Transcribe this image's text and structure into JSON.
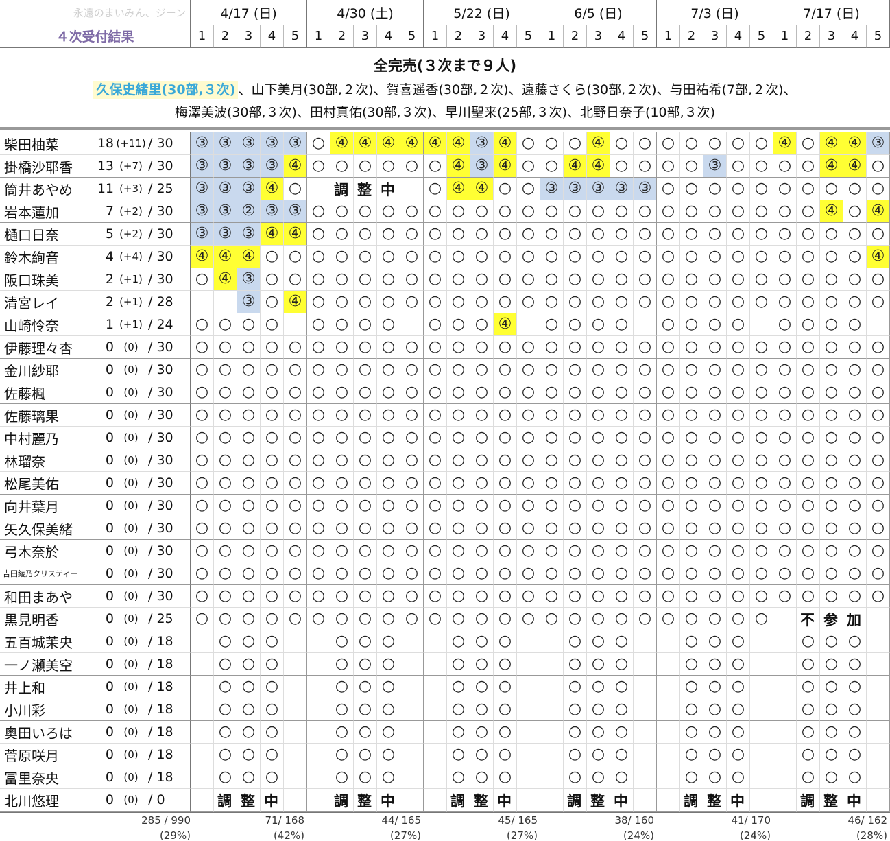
{
  "watermark": "永遠のまいみん、ジーン",
  "label": "４次受付結果",
  "dates": [
    "4/17 (日)",
    "4/30 (土)",
    "5/22 (日)",
    "6/5 (日)",
    "7/3 (日)",
    "7/17 (日)"
  ],
  "slots": [
    "1",
    "2",
    "3",
    "4",
    "5"
  ],
  "soldout": {
    "title": "全完売(３次まで９人)",
    "highlight": "久保史緒里(30部,３次)",
    "line1_rest": "、山下美月(30部,２次)、賀喜遥香(30部,２次)、遠藤さくら(30部,２次)、与田祐希(7部,２次)、",
    "line2": "梅澤美波(30部,３次)、田村真佑(30部,３次)、早川聖来(25部,３次)、北野日奈子(10部,３次)"
  },
  "overlay_adjusting": [
    "調",
    "整",
    "中"
  ],
  "overlay_absent": [
    "不",
    "参",
    "加"
  ],
  "members": [
    {
      "name": "柴田柚菜",
      "sold": "18",
      "diff": "(+11)",
      "total": "/ 30",
      "cells": [
        "3",
        "3",
        "3",
        "3",
        "3",
        "o",
        "4",
        "4",
        "4",
        "4",
        "4",
        "4",
        "3",
        "4",
        "o",
        "o",
        "o",
        "4",
        "o",
        "o",
        "o",
        "o",
        "o",
        "o",
        "o",
        "4",
        "o",
        "4",
        "4",
        "3"
      ]
    },
    {
      "name": "掛橋沙耶香",
      "sold": "13",
      "diff": "(+7)",
      "total": "/ 30",
      "cells": [
        "3",
        "3",
        "3",
        "3",
        "4",
        "o",
        "o",
        "o",
        "o",
        "o",
        "o",
        "4",
        "3",
        "4",
        "o",
        "o",
        "4",
        "4",
        "o",
        "o",
        "o",
        "o",
        "3",
        "o",
        "o",
        "o",
        "o",
        "4",
        "4",
        "o"
      ]
    },
    {
      "name": "筒井あやめ",
      "sold": "11",
      "diff": "(+3)",
      "total": "/ 25",
      "cells": [
        "3",
        "3",
        "3",
        "4",
        "o",
        "",
        "",
        "",
        "",
        "",
        "o",
        "4",
        "4",
        "o",
        "o",
        "3",
        "3",
        "3",
        "3",
        "3",
        "o",
        "o",
        "o",
        "o",
        "o",
        "o",
        "o",
        "o",
        "o",
        "o"
      ],
      "overlay": "adj1"
    },
    {
      "name": "岩本蓮加",
      "sold": "7",
      "diff": "(+2)",
      "total": "/ 30",
      "cells": [
        "3",
        "3",
        "2",
        "3",
        "3",
        "o",
        "o",
        "o",
        "o",
        "o",
        "o",
        "o",
        "o",
        "o",
        "o",
        "o",
        "o",
        "o",
        "o",
        "o",
        "o",
        "o",
        "o",
        "o",
        "o",
        "o",
        "o",
        "4",
        "o",
        "4"
      ]
    },
    {
      "name": "樋口日奈",
      "sold": "5",
      "diff": "(+2)",
      "total": "/ 30",
      "cells": [
        "3",
        "3",
        "3",
        "4",
        "4",
        "o",
        "o",
        "o",
        "o",
        "o",
        "o",
        "o",
        "o",
        "o",
        "o",
        "o",
        "o",
        "o",
        "o",
        "o",
        "o",
        "o",
        "o",
        "o",
        "o",
        "o",
        "o",
        "o",
        "o",
        "o"
      ]
    },
    {
      "name": "鈴木絢音",
      "sold": "4",
      "diff": "(+4)",
      "total": "/ 30",
      "cells": [
        "4",
        "4",
        "4",
        "o",
        "o",
        "o",
        "o",
        "o",
        "o",
        "o",
        "o",
        "o",
        "o",
        "o",
        "o",
        "o",
        "o",
        "o",
        "o",
        "o",
        "o",
        "o",
        "o",
        "o",
        "o",
        "o",
        "o",
        "o",
        "o",
        "4"
      ]
    },
    {
      "name": "阪口珠美",
      "sold": "2",
      "diff": "(+1)",
      "total": "/ 30",
      "cells": [
        "o",
        "4",
        "3",
        "o",
        "o",
        "o",
        "o",
        "o",
        "o",
        "o",
        "o",
        "o",
        "o",
        "o",
        "o",
        "o",
        "o",
        "o",
        "o",
        "o",
        "o",
        "o",
        "o",
        "o",
        "o",
        "o",
        "o",
        "o",
        "o",
        "o"
      ]
    },
    {
      "name": "清宮レイ",
      "sold": "2",
      "diff": "(+1)",
      "total": "/ 28",
      "cells": [
        "",
        "",
        "3",
        "o",
        "4",
        "o",
        "o",
        "o",
        "o",
        "o",
        "o",
        "o",
        "o",
        "o",
        "o",
        "o",
        "o",
        "o",
        "o",
        "o",
        "o",
        "o",
        "o",
        "o",
        "o",
        "o",
        "o",
        "o",
        "o",
        "o"
      ]
    },
    {
      "name": "山崎怜奈",
      "sold": "1",
      "diff": "(+1)",
      "total": "/ 24",
      "cells": [
        "o",
        "o",
        "o",
        "o",
        "",
        "o",
        "o",
        "o",
        "o",
        "",
        "o",
        "o",
        "o",
        "4",
        "",
        "o",
        "o",
        "o",
        "o",
        "",
        "o",
        "o",
        "o",
        "o",
        "",
        "o",
        "o",
        "o",
        "o",
        ""
      ]
    },
    {
      "name": "伊藤理々杏",
      "sold": "0",
      "diff": "(0)",
      "total": "/ 30",
      "cells": "all"
    },
    {
      "name": "金川紗耶",
      "sold": "0",
      "diff": "(0)",
      "total": "/ 30",
      "cells": "all"
    },
    {
      "name": "佐藤楓",
      "sold": "0",
      "diff": "(0)",
      "total": "/ 30",
      "cells": "all"
    },
    {
      "name": "佐藤璃果",
      "sold": "0",
      "diff": "(0)",
      "total": "/ 30",
      "cells": "all"
    },
    {
      "name": "中村麗乃",
      "sold": "0",
      "diff": "(0)",
      "total": "/ 30",
      "cells": "all"
    },
    {
      "name": "林瑠奈",
      "sold": "0",
      "diff": "(0)",
      "total": "/ 30",
      "cells": "all"
    },
    {
      "name": "松尾美佑",
      "sold": "0",
      "diff": "(0)",
      "total": "/ 30",
      "cells": "all"
    },
    {
      "name": "向井葉月",
      "sold": "0",
      "diff": "(0)",
      "total": "/ 30",
      "cells": "all"
    },
    {
      "name": "矢久保美緒",
      "sold": "0",
      "diff": "(0)",
      "total": "/ 30",
      "cells": "all"
    },
    {
      "name": "弓木奈於",
      "sold": "0",
      "diff": "(0)",
      "total": "/ 30",
      "cells": "all"
    },
    {
      "name": "吉田綾乃クリスティー",
      "sold": "0",
      "diff": "(0)",
      "total": "/ 30",
      "cells": "all",
      "small": true
    },
    {
      "name": "和田まあや",
      "sold": "0",
      "diff": "(0)",
      "total": "/ 30",
      "cells": "all"
    },
    {
      "name": "黒見明香",
      "sold": "0",
      "diff": "(0)",
      "total": "/ 25",
      "cells": [
        "o",
        "o",
        "o",
        "o",
        "o",
        "o",
        "o",
        "o",
        "o",
        "o",
        "o",
        "o",
        "o",
        "o",
        "o",
        "o",
        "o",
        "o",
        "o",
        "o",
        "o",
        "o",
        "o",
        "o",
        "o",
        "",
        "",
        "",
        "",
        ""
      ],
      "overlay": "absent"
    },
    {
      "name": "五百城茉央",
      "sold": "0",
      "diff": "(0)",
      "total": "/ 18",
      "cells": "mid"
    },
    {
      "name": "一ノ瀬美空",
      "sold": "0",
      "diff": "(0)",
      "total": "/ 18",
      "cells": "mid"
    },
    {
      "name": "井上和",
      "sold": "0",
      "diff": "(0)",
      "total": "/ 18",
      "cells": "mid"
    },
    {
      "name": "小川彩",
      "sold": "0",
      "diff": "(0)",
      "total": "/ 18",
      "cells": "mid"
    },
    {
      "name": "奥田いろは",
      "sold": "0",
      "diff": "(0)",
      "total": "/ 18",
      "cells": "mid"
    },
    {
      "name": "菅原咲月",
      "sold": "0",
      "diff": "(0)",
      "total": "/ 18",
      "cells": "mid"
    },
    {
      "name": "冨里奈央",
      "sold": "0",
      "diff": "(0)",
      "total": "/ 18",
      "cells": "mid"
    },
    {
      "name": "北川悠理",
      "sold": "0",
      "diff": "(0)",
      "total": "/ 0",
      "cells": "none",
      "overlay": "adjall"
    }
  ],
  "footer": {
    "total": "285 / 990",
    "total_pct": "(29%)",
    "dates": [
      {
        "v": "71/ 168",
        "p": "(42%)"
      },
      {
        "v": "44/ 165",
        "p": "(27%)"
      },
      {
        "v": "45/ 165",
        "p": "(27%)"
      },
      {
        "v": "38/ 160",
        "p": "(24%)"
      },
      {
        "v": "41/ 170",
        "p": "(24%)"
      },
      {
        "v": "46/ 162",
        "p": "(28%)"
      }
    ]
  }
}
